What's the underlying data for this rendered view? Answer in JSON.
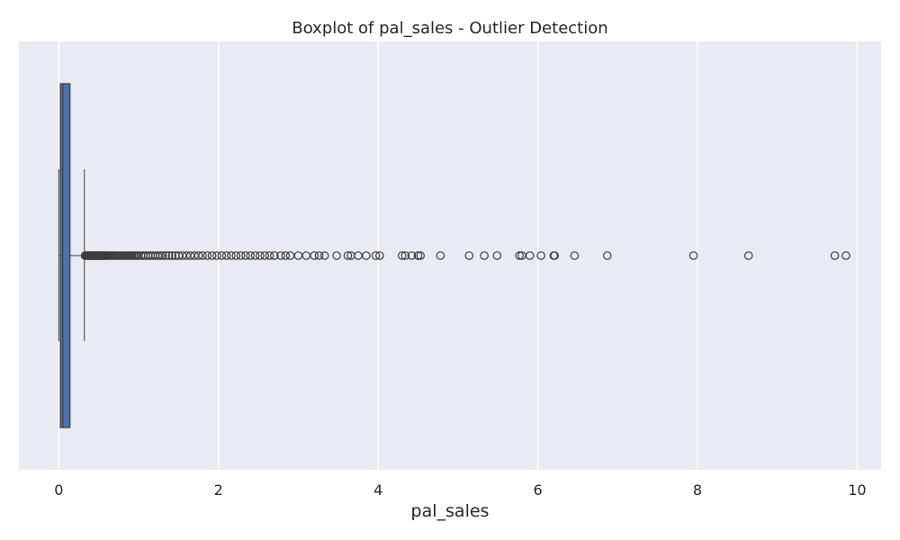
{
  "chart_data": {
    "type": "boxplot",
    "title": "Boxplot of pal_sales - Outlier Detection",
    "xlabel": "pal_sales",
    "ylabel": "",
    "xlim": [
      -0.5,
      10.3
    ],
    "xticks": [
      0,
      2,
      4,
      6,
      8,
      10
    ],
    "xtick_labels": [
      "0",
      "2",
      "4",
      "6",
      "8",
      "10"
    ],
    "grid": true,
    "orientation": "horizontal",
    "colors": {
      "background": "#eaeaf2",
      "grid": "#ffffff",
      "box_fill": "#4c72b0",
      "box_edge": "#3d3d3d",
      "whisker": "#3d3d3d",
      "flier_edge": "#3d3d3d",
      "text": "#262626"
    },
    "box": {
      "whisker_low": 0.0,
      "q1": 0.02,
      "median": 0.05,
      "q3": 0.14,
      "whisker_high": 0.32
    },
    "outliers": [
      0.33,
      0.34,
      0.35,
      0.36,
      0.37,
      0.38,
      0.39,
      0.4,
      0.41,
      0.42,
      0.43,
      0.44,
      0.45,
      0.46,
      0.47,
      0.48,
      0.49,
      0.5,
      0.51,
      0.52,
      0.53,
      0.54,
      0.55,
      0.56,
      0.57,
      0.58,
      0.59,
      0.6,
      0.62,
      0.64,
      0.66,
      0.68,
      0.7,
      0.72,
      0.74,
      0.76,
      0.78,
      0.8,
      0.82,
      0.84,
      0.86,
      0.88,
      0.9,
      0.92,
      0.94,
      0.96,
      0.98,
      1.0,
      1.03,
      1.06,
      1.09,
      1.12,
      1.15,
      1.18,
      1.21,
      1.24,
      1.27,
      1.3,
      1.34,
      1.38,
      1.42,
      1.46,
      1.5,
      1.55,
      1.6,
      1.65,
      1.7,
      1.75,
      1.8,
      1.86,
      1.92,
      1.98,
      2.04,
      2.1,
      2.16,
      2.22,
      2.28,
      2.34,
      2.4,
      2.46,
      2.52,
      2.58,
      2.64,
      2.7,
      2.78,
      2.84,
      2.9,
      3.0,
      3.1,
      3.2,
      3.26,
      3.33,
      3.48,
      3.62,
      3.66,
      3.75,
      3.85,
      3.97,
      4.02,
      4.3,
      4.34,
      4.42,
      4.5,
      4.53,
      4.78,
      5.14,
      5.33,
      5.49,
      5.77,
      5.8,
      5.9,
      6.04,
      6.2,
      6.21,
      6.46,
      6.87,
      7.95,
      8.64,
      9.72,
      9.86
    ]
  }
}
